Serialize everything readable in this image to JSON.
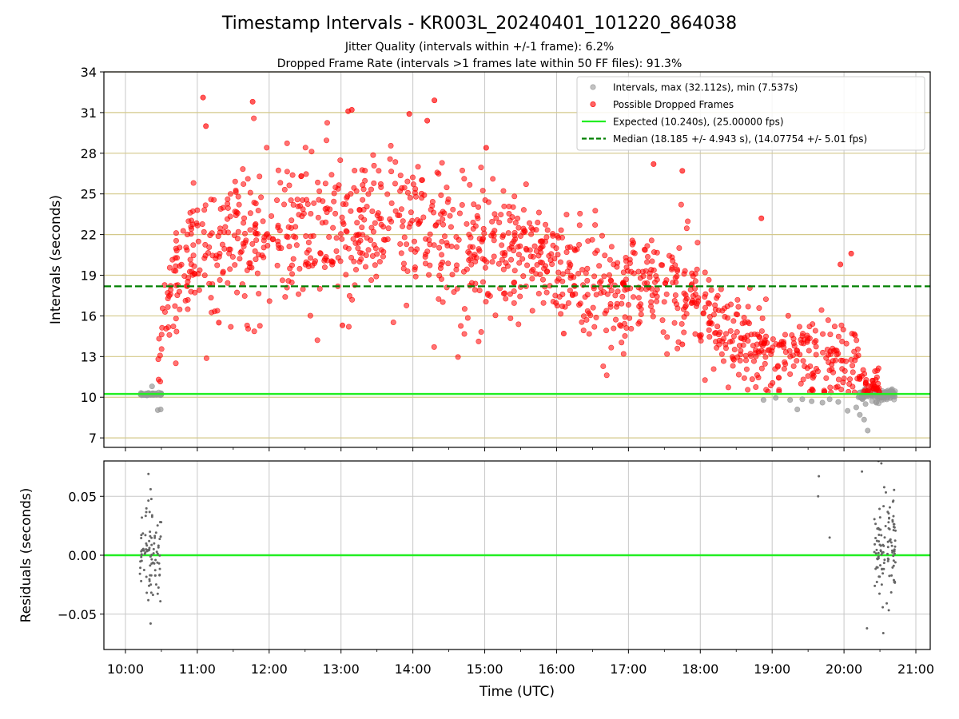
{
  "chart_data": {
    "type": "scatter",
    "title": "Timestamp Intervals - KR003L_20240401_101220_864038",
    "subtitle_1": "Jitter Quality (intervals within +/-1 frame): 6.2%",
    "subtitle_2": "Dropped Frame Rate (intervals >1 frames late within 50 FF files): 91.3%",
    "xlabel": "Time (UTC)",
    "x_ticks": [
      "10:00",
      "11:00",
      "12:00",
      "13:00",
      "14:00",
      "15:00",
      "16:00",
      "17:00",
      "18:00",
      "19:00",
      "20:00",
      "21:00"
    ],
    "x_tick_hours": [
      10,
      11,
      12,
      13,
      14,
      15,
      16,
      17,
      18,
      19,
      20,
      21
    ],
    "xlim_hours": [
      9.7,
      21.2
    ],
    "top": {
      "ylabel": "Intervals (seconds)",
      "ylim": [
        6.3,
        34
      ],
      "y_ticks": [
        7,
        10,
        13,
        16,
        19,
        22,
        25,
        28,
        31,
        34
      ],
      "grid_color": "#d4c98a",
      "legend_position": "top-right",
      "series": [
        {
          "name": "Intervals, max (32.112s), min (7.537s)",
          "color": "#999999",
          "marker": "circle",
          "clusters": [
            {
              "hours": [
                10.2,
                10.5
              ],
              "y_center": 10.22,
              "y_spread": 0.12,
              "count": 60
            },
            {
              "hours": [
                20.2,
                20.72
              ],
              "y_center": 10.15,
              "y_spread": 0.45,
              "count": 110
            }
          ],
          "points": [
            {
              "x": 10.45,
              "y": 9.05
            },
            {
              "x": 10.49,
              "y": 9.1
            },
            {
              "x": 10.37,
              "y": 10.8
            },
            {
              "x": 18.88,
              "y": 9.8
            },
            {
              "x": 19.05,
              "y": 9.95
            },
            {
              "x": 19.25,
              "y": 9.8
            },
            {
              "x": 19.35,
              "y": 9.1
            },
            {
              "x": 19.42,
              "y": 9.85
            },
            {
              "x": 19.55,
              "y": 9.7
            },
            {
              "x": 19.7,
              "y": 9.6
            },
            {
              "x": 19.8,
              "y": 9.85
            },
            {
              "x": 19.92,
              "y": 9.65
            },
            {
              "x": 20.05,
              "y": 9.0
            },
            {
              "x": 20.17,
              "y": 9.25
            },
            {
              "x": 20.22,
              "y": 8.7
            },
            {
              "x": 20.28,
              "y": 8.35
            },
            {
              "x": 20.33,
              "y": 7.54
            },
            {
              "x": 20.3,
              "y": 9.5
            },
            {
              "x": 20.45,
              "y": 9.6
            }
          ]
        },
        {
          "name": "Possible Dropped Frames",
          "color": "#ff0000",
          "marker": "circle",
          "max_y": 32.11,
          "trend": [
            {
              "x": 10.45,
              "y": 11.0
            },
            {
              "x": 10.55,
              "y": 16.5
            },
            {
              "x": 10.7,
              "y": 19.0
            },
            {
              "x": 11.0,
              "y": 21.0
            },
            {
              "x": 12.0,
              "y": 21.8
            },
            {
              "x": 13.0,
              "y": 22.3
            },
            {
              "x": 14.0,
              "y": 22.5
            },
            {
              "x": 15.0,
              "y": 21.3
            },
            {
              "x": 15.8,
              "y": 20.5
            },
            {
              "x": 16.3,
              "y": 18.5
            },
            {
              "x": 17.0,
              "y": 18.0
            },
            {
              "x": 17.8,
              "y": 18.3
            },
            {
              "x": 18.1,
              "y": 16.5
            },
            {
              "x": 18.5,
              "y": 14.0
            },
            {
              "x": 19.0,
              "y": 13.2
            },
            {
              "x": 19.5,
              "y": 12.5
            },
            {
              "x": 20.0,
              "y": 12.7
            },
            {
              "x": 20.2,
              "y": 11.5
            },
            {
              "x": 20.5,
              "y": 10.5
            }
          ],
          "highlights": [
            {
              "x": 11.08,
              "y": 32.11
            },
            {
              "x": 11.12,
              "y": 30.0
            },
            {
              "x": 11.77,
              "y": 31.8
            },
            {
              "x": 13.1,
              "y": 31.1
            },
            {
              "x": 13.15,
              "y": 31.2
            },
            {
              "x": 14.3,
              "y": 31.9
            },
            {
              "x": 13.95,
              "y": 30.9
            },
            {
              "x": 14.2,
              "y": 30.4
            },
            {
              "x": 15.02,
              "y": 28.4
            },
            {
              "x": 17.35,
              "y": 27.2
            },
            {
              "x": 17.75,
              "y": 26.7
            },
            {
              "x": 18.85,
              "y": 23.2
            },
            {
              "x": 20.1,
              "y": 20.6
            },
            {
              "x": 19.95,
              "y": 19.8
            },
            {
              "x": 11.3,
              "y": 15.5
            },
            {
              "x": 13.02,
              "y": 15.3
            },
            {
              "x": 16.1,
              "y": 14.7
            },
            {
              "x": 17.75,
              "y": 13.9
            }
          ]
        }
      ],
      "lines": [
        {
          "name": "Expected (10.240s), (25.00000 fps)",
          "y": 10.24,
          "color": "#22ee22",
          "style": "solid"
        },
        {
          "name": "Median (18.185 +/- 4.943 s), (14.07754 +/- 5.01 fps)",
          "y": 18.185,
          "color": "#008000",
          "style": "dashed"
        }
      ]
    },
    "bottom": {
      "ylabel": "Residuals (seconds)",
      "ylim": [
        -0.08,
        0.08
      ],
      "y_ticks": [
        -0.05,
        0.0,
        0.05
      ],
      "y_tick_labels": [
        "−0.05",
        "0.00",
        "0.05"
      ],
      "zero_line_color": "#22ee22",
      "point_color": "#666666",
      "clusters": [
        {
          "hours": [
            10.2,
            10.5
          ],
          "count": 90
        },
        {
          "hours": [
            20.42,
            20.72
          ],
          "count": 110
        }
      ],
      "points": [
        {
          "x": 10.32,
          "y": 0.069
        },
        {
          "x": 10.35,
          "y": 0.056
        },
        {
          "x": 10.35,
          "y": -0.058
        },
        {
          "x": 19.65,
          "y": 0.067
        },
        {
          "x": 19.64,
          "y": 0.05
        },
        {
          "x": 19.8,
          "y": 0.015
        },
        {
          "x": 20.25,
          "y": 0.071
        },
        {
          "x": 20.32,
          "y": -0.062
        },
        {
          "x": 20.48,
          "y": 0.08
        },
        {
          "x": 20.52,
          "y": 0.078
        }
      ]
    }
  }
}
